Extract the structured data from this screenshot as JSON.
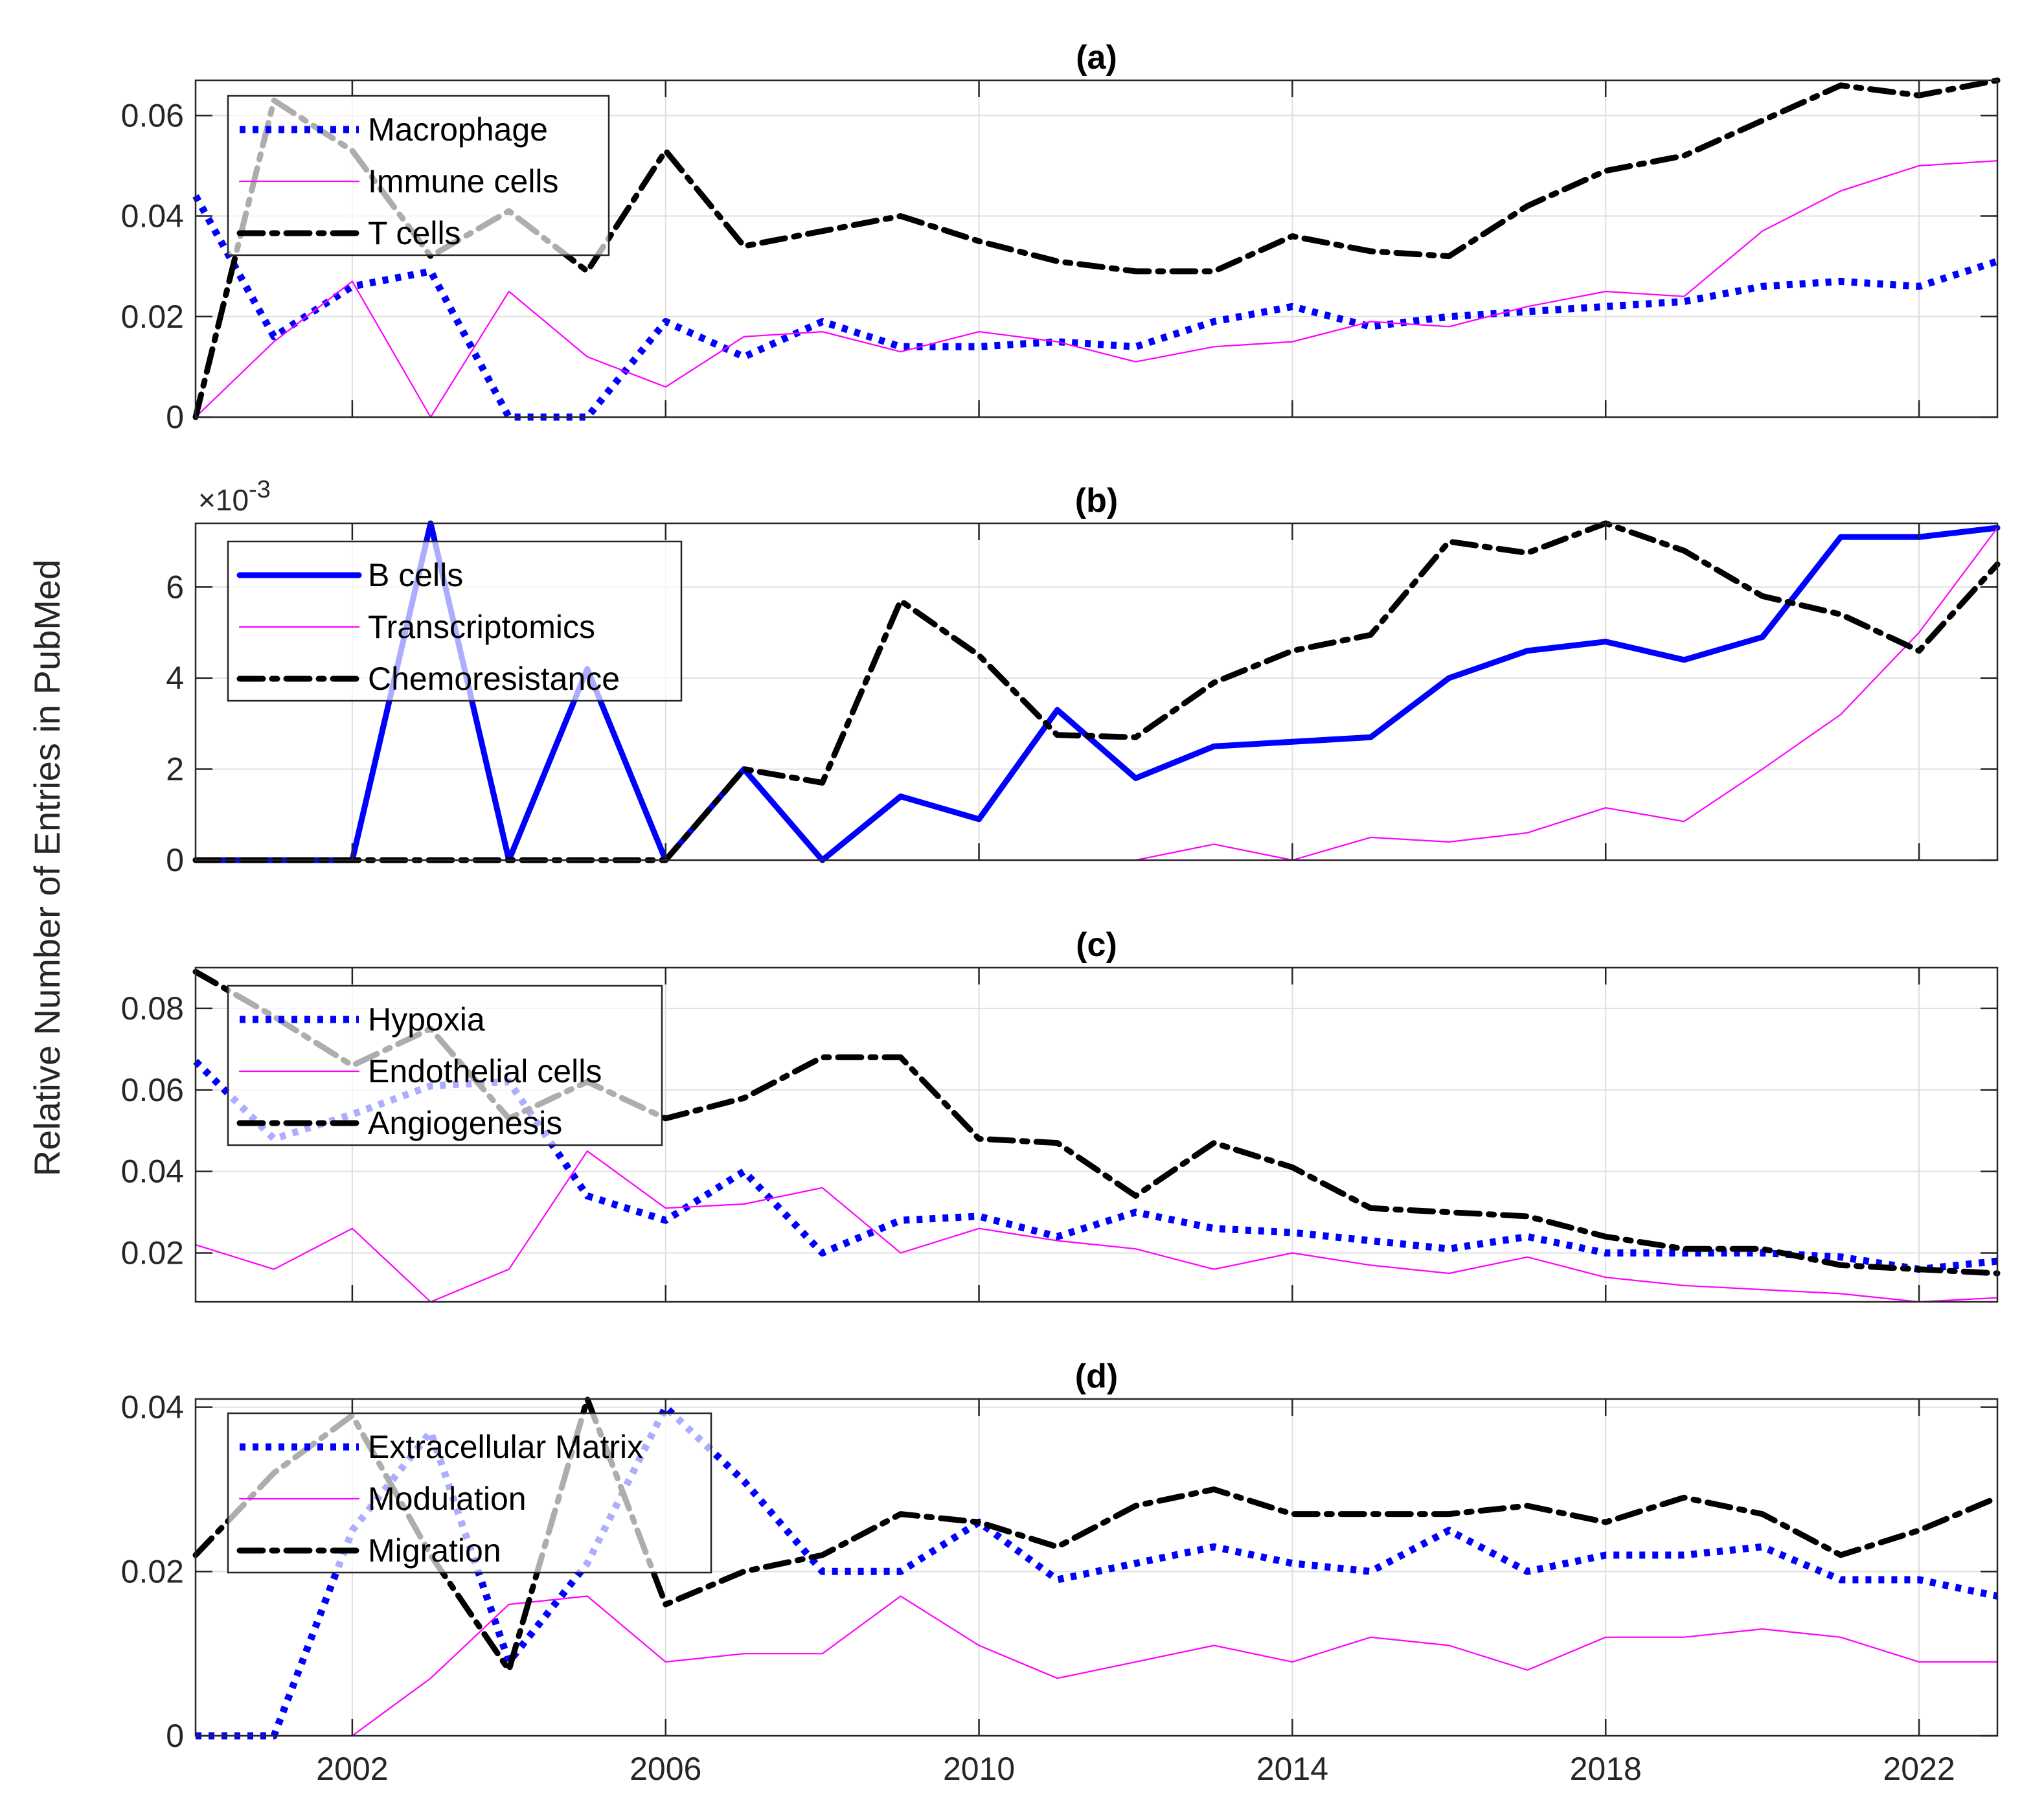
{
  "figure": {
    "ylabel": "Relative Number of Entries in PubMed",
    "xticks": [
      2002,
      2006,
      2010,
      2014,
      2018,
      2022
    ],
    "xlim": [
      2000,
      2023
    ]
  },
  "colors": {
    "blue": "#0000ff",
    "magenta": "#ff00ff",
    "black": "#000000",
    "grid": "#dfdfdf"
  },
  "chart_data": [
    {
      "type": "line",
      "panel": "a",
      "title": "(a)",
      "xlabel": "",
      "ylim": [
        0,
        0.067
      ],
      "yticks": [
        0,
        0.02,
        0.04,
        0.06
      ],
      "ytick_labels": [
        "0",
        "0.02",
        "0.04",
        "0.06"
      ],
      "exponent_label": "",
      "legend_position": "top-left",
      "x": [
        2000,
        2001,
        2002,
        2003,
        2004,
        2005,
        2006,
        2007,
        2008,
        2009,
        2010,
        2011,
        2012,
        2013,
        2014,
        2015,
        2016,
        2017,
        2018,
        2019,
        2020,
        2021,
        2022,
        2023
      ],
      "series": [
        {
          "name": "Macrophage",
          "style": "dotted",
          "color": "#0000ff",
          "values": [
            0.044,
            0.016,
            0.026,
            0.029,
            0.0,
            0.0,
            0.019,
            0.012,
            0.019,
            0.014,
            0.014,
            0.015,
            0.014,
            0.019,
            0.022,
            0.018,
            0.02,
            0.021,
            0.022,
            0.023,
            0.026,
            0.027,
            0.026,
            0.031
          ]
        },
        {
          "name": "Immune cells",
          "style": "thin",
          "color": "#ff00ff",
          "values": [
            0.0,
            0.015,
            0.027,
            0.0,
            0.025,
            0.012,
            0.006,
            0.016,
            0.017,
            0.013,
            0.017,
            0.015,
            0.011,
            0.014,
            0.015,
            0.019,
            0.018,
            0.022,
            0.025,
            0.024,
            0.037,
            0.045,
            0.05,
            0.051
          ]
        },
        {
          "name": "T cells",
          "style": "dashdot",
          "color": "#000000",
          "values": [
            0.0,
            0.063,
            0.053,
            0.032,
            0.041,
            0.029,
            0.053,
            0.034,
            0.037,
            0.04,
            0.035,
            0.031,
            0.029,
            0.029,
            0.036,
            0.033,
            0.032,
            0.042,
            0.049,
            0.052,
            0.059,
            0.066,
            0.064,
            0.067
          ]
        }
      ]
    },
    {
      "type": "line",
      "panel": "b",
      "title": "(b)",
      "xlabel": "",
      "ylim": [
        0,
        7.4
      ],
      "yticks": [
        0,
        2,
        4,
        6
      ],
      "ytick_labels": [
        "0",
        "2",
        "4",
        "6"
      ],
      "exponent_label": "×10",
      "exponent_power": "-3",
      "legend_position": "top-left",
      "x": [
        2000,
        2001,
        2002,
        2003,
        2004,
        2005,
        2006,
        2007,
        2008,
        2009,
        2010,
        2011,
        2012,
        2013,
        2014,
        2015,
        2016,
        2017,
        2018,
        2019,
        2020,
        2021,
        2022,
        2023
      ],
      "series": [
        {
          "name": "B cells",
          "style": "solid",
          "color": "#0000ff",
          "values": [
            0,
            0,
            0,
            7.4,
            0,
            4.2,
            0,
            2.0,
            0,
            1.4,
            0.9,
            3.3,
            1.8,
            2.5,
            2.6,
            2.7,
            4.0,
            4.6,
            4.8,
            4.4,
            4.9,
            7.1,
            7.1,
            7.3
          ]
        },
        {
          "name": "Transcriptomics",
          "style": "thin",
          "color": "#ff00ff",
          "values": [
            0,
            0,
            0,
            0,
            0,
            0,
            0,
            0,
            0,
            0,
            0,
            0,
            0,
            0.35,
            0,
            0.5,
            0.4,
            0.6,
            1.15,
            0.85,
            2.0,
            3.2,
            5.0,
            7.3
          ]
        },
        {
          "name": "Chemoresistance",
          "style": "dashdot",
          "color": "#000000",
          "values": [
            0,
            0,
            0,
            0,
            0,
            0,
            0,
            2.0,
            1.7,
            5.7,
            4.5,
            2.75,
            2.7,
            3.9,
            4.6,
            4.95,
            7.0,
            6.75,
            7.4,
            6.8,
            5.8,
            5.4,
            4.6,
            6.5
          ]
        }
      ]
    },
    {
      "type": "line",
      "panel": "c",
      "title": "(c)",
      "xlabel": "",
      "ylim": [
        0.008,
        0.09
      ],
      "yticks": [
        0.02,
        0.04,
        0.06,
        0.08
      ],
      "ytick_labels": [
        "0.02",
        "0.04",
        "0.06",
        "0.08"
      ],
      "exponent_label": "",
      "legend_position": "top-left",
      "x": [
        2000,
        2001,
        2002,
        2003,
        2004,
        2005,
        2006,
        2007,
        2008,
        2009,
        2010,
        2011,
        2012,
        2013,
        2014,
        2015,
        2016,
        2017,
        2018,
        2019,
        2020,
        2021,
        2022,
        2023
      ],
      "series": [
        {
          "name": "Hypoxia",
          "style": "dotted",
          "color": "#0000ff",
          "values": [
            0.067,
            0.048,
            0.054,
            0.061,
            0.062,
            0.034,
            0.028,
            0.04,
            0.02,
            0.028,
            0.029,
            0.024,
            0.03,
            0.026,
            0.025,
            0.023,
            0.021,
            0.024,
            0.02,
            0.02,
            0.02,
            0.019,
            0.016,
            0.018
          ]
        },
        {
          "name": "Endothelial cells",
          "style": "thin",
          "color": "#ff00ff",
          "values": [
            0.022,
            0.016,
            0.026,
            0.008,
            0.016,
            0.045,
            0.031,
            0.032,
            0.036,
            0.02,
            0.026,
            0.023,
            0.021,
            0.016,
            0.02,
            0.017,
            0.015,
            0.019,
            0.014,
            0.012,
            0.011,
            0.01,
            0.008,
            0.009
          ]
        },
        {
          "name": "Angiogenesis",
          "style": "dashdot",
          "color": "#000000",
          "values": [
            0.089,
            0.078,
            0.066,
            0.075,
            0.053,
            0.062,
            0.053,
            0.058,
            0.068,
            0.068,
            0.048,
            0.047,
            0.034,
            0.047,
            0.041,
            0.031,
            0.03,
            0.029,
            0.024,
            0.021,
            0.021,
            0.017,
            0.016,
            0.015
          ]
        }
      ]
    },
    {
      "type": "line",
      "panel": "d",
      "title": "(d)",
      "xlabel": "",
      "ylim": [
        0,
        0.041
      ],
      "yticks": [
        0,
        0.02,
        0.04
      ],
      "ytick_labels": [
        "0",
        "0.02",
        "0.04"
      ],
      "exponent_label": "",
      "legend_position": "top-left",
      "x": [
        2000,
        2001,
        2002,
        2003,
        2004,
        2005,
        2006,
        2007,
        2008,
        2009,
        2010,
        2011,
        2012,
        2013,
        2014,
        2015,
        2016,
        2017,
        2018,
        2019,
        2020,
        2021,
        2022,
        2023
      ],
      "series": [
        {
          "name": "Extracellular Matrix",
          "style": "dotted",
          "color": "#0000ff",
          "values": [
            0,
            0,
            0.025,
            0.037,
            0.009,
            0.021,
            0.04,
            0.031,
            0.02,
            0.02,
            0.026,
            0.019,
            0.021,
            0.023,
            0.021,
            0.02,
            0.025,
            0.02,
            0.022,
            0.022,
            0.023,
            0.019,
            0.019,
            0.017
          ]
        },
        {
          "name": "Modulation",
          "style": "thin",
          "color": "#ff00ff",
          "values": [
            0,
            0,
            0,
            0.007,
            0.016,
            0.017,
            0.009,
            0.01,
            0.01,
            0.017,
            0.011,
            0.007,
            0.009,
            0.011,
            0.009,
            0.012,
            0.011,
            0.008,
            0.012,
            0.012,
            0.013,
            0.012,
            0.009,
            0.009
          ]
        },
        {
          "name": "Migration",
          "style": "dashdot",
          "color": "#000000",
          "values": [
            0.022,
            0.032,
            0.039,
            0.022,
            0.008,
            0.041,
            0.016,
            0.02,
            0.022,
            0.027,
            0.026,
            0.023,
            0.028,
            0.03,
            0.027,
            0.027,
            0.027,
            0.028,
            0.026,
            0.029,
            0.027,
            0.022,
            0.025,
            0.029
          ]
        }
      ]
    }
  ]
}
